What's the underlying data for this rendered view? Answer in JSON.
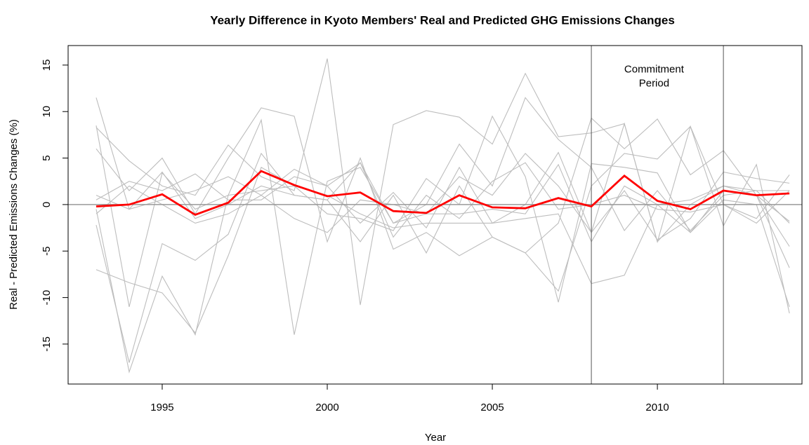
{
  "chart_data": {
    "type": "line",
    "title": "Yearly Difference in Kyoto Members' Real and Predicted GHG Emissions Changes",
    "xlabel": "Year",
    "ylabel": "Real - Predicted Emissions Changes (%)",
    "x": [
      1993,
      1994,
      1995,
      1996,
      1997,
      1998,
      1999,
      2000,
      2001,
      2002,
      2003,
      2004,
      2005,
      2006,
      2007,
      2008,
      2009,
      2010,
      2011,
      2012,
      2013,
      2014
    ],
    "xlim": [
      1992.15,
      2014.38
    ],
    "xticks": [
      1995,
      2000,
      2005,
      2010
    ],
    "ylim": [
      -19.3,
      17.1
    ],
    "yticks": [
      -15,
      -10,
      -5,
      0,
      5,
      10,
      15
    ],
    "hline": 0,
    "vlines": [
      2008,
      2012
    ],
    "annotation": {
      "lines": [
        "Commitment",
        "Period"
      ],
      "x": 2009.9,
      "y": 14.5
    },
    "series": [
      {
        "color": "#bdbdbd",
        "values": [
          11.5,
          -0.5,
          3.5,
          -1.5,
          0,
          2,
          1,
          0.5,
          4.5,
          -2,
          -1,
          3,
          1,
          5.5,
          2,
          -3,
          8.7,
          -4,
          0,
          2,
          1.5,
          -2
        ]
      },
      {
        "color": "#bdbdbd",
        "values": [
          8.3,
          4.7,
          2,
          1,
          6.4,
          3,
          1.5,
          15.7,
          -10.8,
          8.6,
          10.1,
          9.4,
          6.5,
          14.1,
          7.3,
          7.7,
          8.7,
          -4,
          8.4,
          -2.3,
          4.3,
          -11.7
        ]
      },
      {
        "color": "#bdbdbd",
        "values": [
          -7,
          -8.4,
          -9.5,
          -13.8,
          -5.5,
          4,
          2,
          1,
          -1,
          -2.5,
          -2,
          -2,
          -2,
          -1.5,
          -1,
          -8.5,
          -7.6,
          0,
          0.5,
          2,
          1,
          -4.5
        ]
      },
      {
        "color": "#bdbdbd",
        "values": [
          -2.2,
          -17,
          -4.2,
          -6,
          -3.2,
          5.5,
          1,
          0.5,
          -4,
          1,
          -5.2,
          2,
          -3.5,
          -5.2,
          -9.3,
          2,
          5.5,
          4.9,
          8.4,
          0,
          -1.5,
          3.2
        ]
      },
      {
        "color": "#bdbdbd",
        "values": [
          -0.5,
          -18,
          -7.7,
          -14,
          1,
          1.5,
          2,
          -1,
          -1.5,
          -2.8,
          2.8,
          0,
          9.5,
          3,
          -10.5,
          4.4,
          4,
          3.4,
          -3,
          1.5,
          1,
          -1.8
        ]
      },
      {
        "color": "#bdbdbd",
        "values": [
          6,
          1.5,
          5,
          -1,
          5,
          10.4,
          9.5,
          -4,
          5,
          -4.8,
          -3,
          -5.5,
          -3.5,
          -5.2,
          -2,
          9.3,
          6,
          9.2,
          3.2,
          5.8,
          1,
          -6.8
        ]
      },
      {
        "color": "#bdbdbd",
        "values": [
          8.5,
          -11,
          3.4,
          -0.5,
          1,
          9.1,
          -14,
          2.5,
          4,
          -2,
          0,
          6.5,
          2,
          11.5,
          7,
          4,
          -2.8,
          1.5,
          -2.8,
          1,
          1.5,
          1.5
        ]
      },
      {
        "color": "#bdbdbd",
        "values": [
          0.5,
          2.5,
          1.5,
          3.3,
          0.5,
          0.5,
          3,
          2,
          -2,
          1.3,
          -2.5,
          4,
          -2,
          0,
          5.6,
          -3,
          1.5,
          -3.8,
          -1.5,
          3.5,
          2.8,
          2.3
        ]
      },
      {
        "color": "#bdbdbd",
        "values": [
          -1,
          2,
          0,
          -2,
          -1,
          1,
          -1.5,
          -3,
          0.5,
          0,
          -1,
          -1,
          -0.5,
          -1,
          4.3,
          -4,
          2,
          0,
          -3,
          0.5,
          0,
          -11
        ]
      },
      {
        "color": "#bdbdbd",
        "values": [
          1,
          -0.5,
          0.5,
          1.5,
          3,
          1,
          3.8,
          2,
          4.5,
          -3.5,
          1,
          -1.5,
          2.5,
          4.5,
          -0.5,
          0,
          1,
          -0.5,
          -0.8,
          0,
          -2,
          1.5
        ]
      },
      {
        "color": "#ff0000",
        "values": [
          -0.2,
          0,
          1.1,
          -1.1,
          0.2,
          3.6,
          2.1,
          0.9,
          1.3,
          -0.7,
          -0.9,
          1.0,
          -0.3,
          -0.4,
          0.7,
          -0.2,
          3.1,
          0.4,
          -0.5,
          1.5,
          1.0,
          1.2
        ]
      }
    ]
  }
}
